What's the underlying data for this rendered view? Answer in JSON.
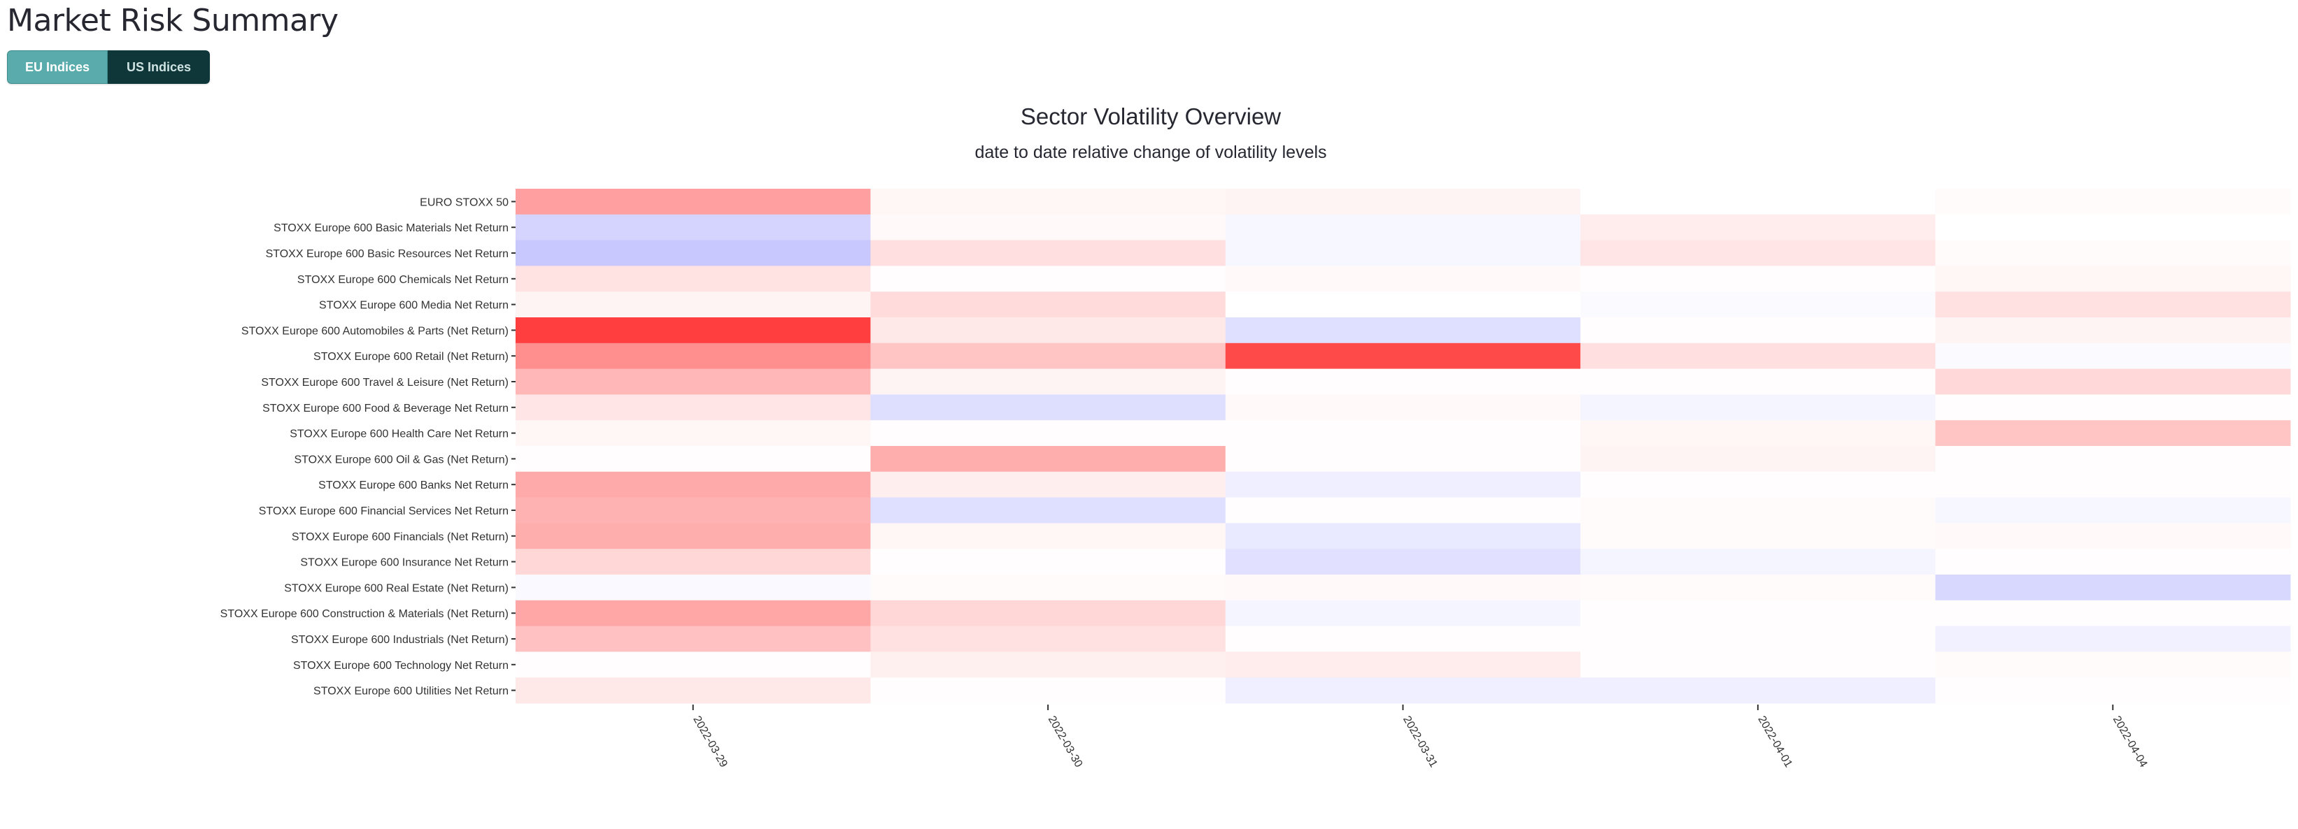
{
  "app": {
    "title": "Market Risk Summary"
  },
  "tabs": [
    {
      "label": "EU Indices",
      "active": true
    },
    {
      "label": "US Indices",
      "active": false
    }
  ],
  "colors": {
    "accent": "#5aabab",
    "dark_tab": "#0f3638",
    "increase": "#ff2a2a",
    "decrease": "#5a5aff"
  },
  "chart_data": {
    "type": "heatmap",
    "title": "Sector Volatility Overview",
    "subtitle": "date to date relative change of volatility levels",
    "x": [
      "2022-03-29",
      "2022-03-30",
      "2022-03-31",
      "2022-04-01",
      "2022-04-04"
    ],
    "y": [
      "EURO STOXX 50",
      "STOXX Europe 600 Basic Materials Net Return",
      "STOXX Europe 600 Basic Resources Net Return",
      "STOXX Europe 600 Chemicals Net Return",
      "STOXX Europe 600 Media Net Return",
      "STOXX Europe 600 Automobiles & Parts (Net Return)",
      "STOXX Europe 600 Retail (Net Return)",
      "STOXX Europe 600 Travel & Leisure (Net Return)",
      "STOXX Europe 600 Food & Beverage Net Return",
      "STOXX Europe 600 Health Care Net Return",
      "STOXX Europe 600 Oil & Gas (Net Return)",
      "STOXX Europe 600 Banks Net Return",
      "STOXX Europe 600 Financial Services Net Return",
      "STOXX Europe 600 Financials (Net Return)",
      "STOXX Europe 600 Insurance Net Return",
      "STOXX Europe 600 Real Estate (Net Return)",
      "STOXX Europe 600 Construction & Materials (Net Return)",
      "STOXX Europe 600 Industrials (Net Return)",
      "STOXX Europe 600 Technology Net Return",
      "STOXX Europe 600 Utilities Net Return"
    ],
    "z": [
      [
        0.45,
        0.04,
        0.05,
        0.0,
        0.02
      ],
      [
        -0.22,
        0.03,
        -0.04,
        0.09,
        0.0
      ],
      [
        -0.28,
        0.15,
        -0.04,
        0.12,
        0.02
      ],
      [
        0.13,
        0.01,
        0.03,
        0.01,
        0.04
      ],
      [
        0.05,
        0.17,
        0.0,
        -0.02,
        0.14
      ],
      [
        0.9,
        0.11,
        -0.16,
        0.01,
        0.05
      ],
      [
        0.53,
        0.27,
        0.85,
        0.15,
        -0.02
      ],
      [
        0.34,
        0.05,
        0.01,
        0.01,
        0.18
      ],
      [
        0.12,
        -0.17,
        0.03,
        -0.05,
        0.01
      ],
      [
        0.04,
        0.01,
        0.01,
        0.04,
        0.27
      ],
      [
        0.01,
        0.38,
        0.01,
        0.05,
        0.01
      ],
      [
        0.4,
        0.08,
        -0.08,
        0.01,
        0.01
      ],
      [
        0.36,
        -0.16,
        0.01,
        0.02,
        -0.04
      ],
      [
        0.38,
        0.04,
        -0.11,
        0.02,
        0.03
      ],
      [
        0.19,
        0.01,
        -0.15,
        -0.05,
        0.01
      ],
      [
        -0.03,
        0.02,
        0.03,
        0.02,
        -0.2
      ],
      [
        0.42,
        0.19,
        -0.05,
        0.01,
        0.01
      ],
      [
        0.29,
        0.14,
        0.01,
        0.01,
        -0.07
      ],
      [
        0.01,
        0.07,
        0.09,
        0.01,
        0.02
      ],
      [
        0.11,
        0.01,
        -0.08,
        -0.08,
        0.01
      ]
    ]
  }
}
